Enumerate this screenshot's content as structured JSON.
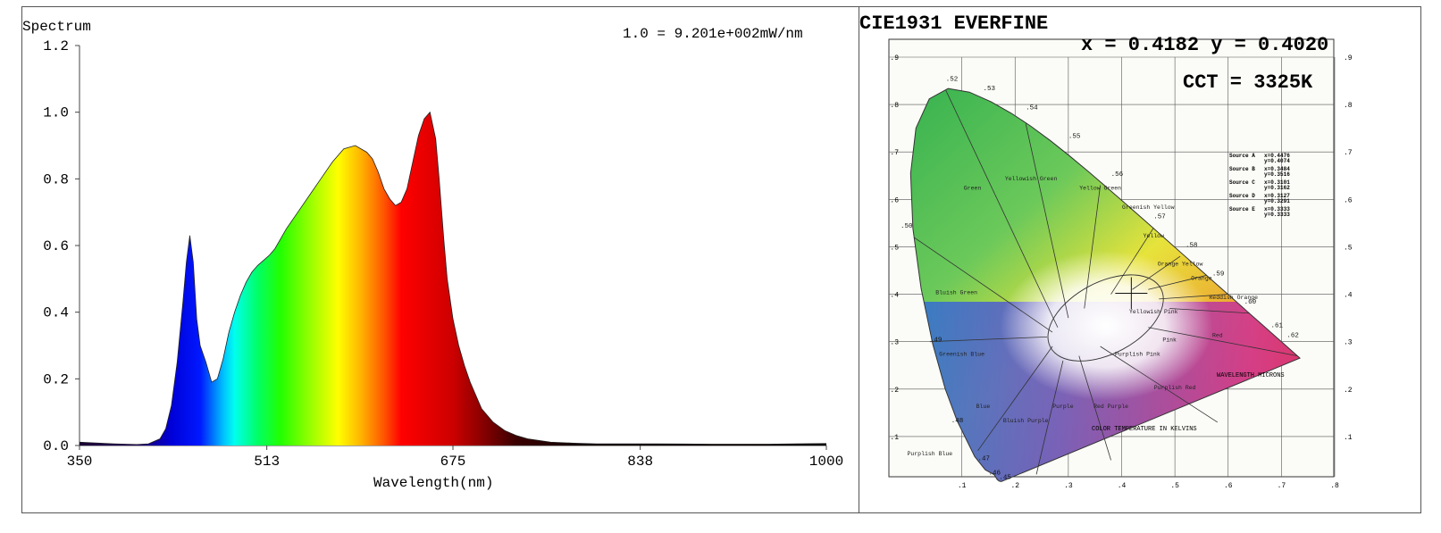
{
  "chart_data": [
    {
      "type": "area",
      "title": "Spectrum",
      "annotation": "1.0 = 9.201e+002mW/nm",
      "xlabel": "Wavelength(nm)",
      "ylabel": "",
      "xlim": [
        350,
        1000
      ],
      "ylim": [
        0,
        1.2
      ],
      "x_ticks": [
        "350",
        "513",
        "675",
        "838",
        "1000"
      ],
      "x_tick_values": [
        350,
        513,
        675,
        838,
        1000
      ],
      "y_ticks": [
        "0.0",
        "0.2",
        "0.4",
        "0.6",
        "0.8",
        "1.0",
        "1.2"
      ],
      "y_tick_values": [
        0,
        0.2,
        0.4,
        0.6,
        0.8,
        1.0,
        1.2
      ],
      "fill": "wavelength-colored gradient",
      "series": [
        {
          "x": [
            350,
            380,
            400,
            410,
            420,
            425,
            430,
            435,
            440,
            443,
            446,
            449,
            452,
            455,
            460,
            465,
            470,
            475,
            480,
            485,
            490,
            495,
            500,
            505,
            510,
            515,
            520,
            525,
            530,
            540,
            550,
            560,
            570,
            580,
            590,
            600,
            605,
            610,
            615,
            620,
            625,
            630,
            635,
            640,
            645,
            650,
            655,
            660,
            663,
            667,
            670,
            675,
            680,
            685,
            690,
            695,
            700,
            710,
            720,
            730,
            740,
            750,
            760,
            780,
            800,
            850,
            900,
            950,
            1000
          ],
          "y": [
            0.01,
            0.005,
            0.003,
            0.005,
            0.02,
            0.05,
            0.12,
            0.25,
            0.43,
            0.55,
            0.63,
            0.55,
            0.38,
            0.3,
            0.25,
            0.19,
            0.2,
            0.26,
            0.34,
            0.4,
            0.45,
            0.49,
            0.52,
            0.54,
            0.555,
            0.57,
            0.59,
            0.62,
            0.65,
            0.7,
            0.75,
            0.8,
            0.85,
            0.89,
            0.9,
            0.88,
            0.86,
            0.82,
            0.77,
            0.74,
            0.72,
            0.73,
            0.77,
            0.85,
            0.93,
            0.98,
            1.0,
            0.92,
            0.8,
            0.62,
            0.5,
            0.38,
            0.3,
            0.24,
            0.19,
            0.15,
            0.11,
            0.07,
            0.045,
            0.03,
            0.02,
            0.015,
            0.01,
            0.007,
            0.005,
            0.005,
            0.004,
            0.004,
            0.006
          ]
        }
      ]
    },
    {
      "type": "scatter",
      "title": "CIE1931 EVERFINE",
      "xlim": [
        0,
        0.8
      ],
      "ylim": [
        0,
        0.9
      ],
      "x_ticks": [
        ".1",
        ".2",
        ".3",
        ".4",
        ".5",
        ".6",
        ".7",
        ".8"
      ],
      "y_ticks": [
        ".1",
        ".2",
        ".3",
        ".4",
        ".5",
        ".6",
        ".7",
        ".8",
        ".9"
      ],
      "coordinates_label": "x = 0.4182 y = 0.4020",
      "cct_label": "CCT = 3325K",
      "points": [
        {
          "x": 0.4182,
          "y": 0.402,
          "marker": "crosshair"
        }
      ],
      "region_labels": [
        "Green",
        "Yellowish Green",
        "Yellow Green",
        "Greenish Yellow",
        "Yellow",
        "Orange Yellow",
        "Orange",
        "Reddish Orange",
        "Red",
        "Pink",
        "Purplish Pink",
        "Purplish Red",
        "Red Purple",
        "Purple",
        "Bluish Purple",
        "Blue",
        "Greenish Blue",
        "Bluish Green",
        "Purplish Blue",
        "Yellowish Pink"
      ],
      "wavelength_labels": [
        ".52",
        ".53",
        ".54",
        ".55",
        ".56",
        ".57",
        ".58",
        ".59",
        ".60",
        ".61",
        ".62",
        ".50",
        ".49",
        ".48",
        ".47",
        ".46",
        ".45"
      ],
      "sources": [
        {
          "name": "Source A",
          "x": "x=0.4476",
          "y": "y=0.4074"
        },
        {
          "name": "Source B",
          "x": "x=0.3484",
          "y": "y=0.3516"
        },
        {
          "name": "Source C",
          "x": "x=0.3101",
          "y": "y=0.3162"
        },
        {
          "name": "Source D",
          "x": "x=0.3127",
          "y": "y=0.3291"
        },
        {
          "name": "Source E",
          "x": "x=0.3333",
          "y": "y=0.3333"
        }
      ],
      "notes": [
        "COLOR TEMPERATURE IN KELVINS",
        "WAVELENGTH MICRONS"
      ]
    }
  ]
}
